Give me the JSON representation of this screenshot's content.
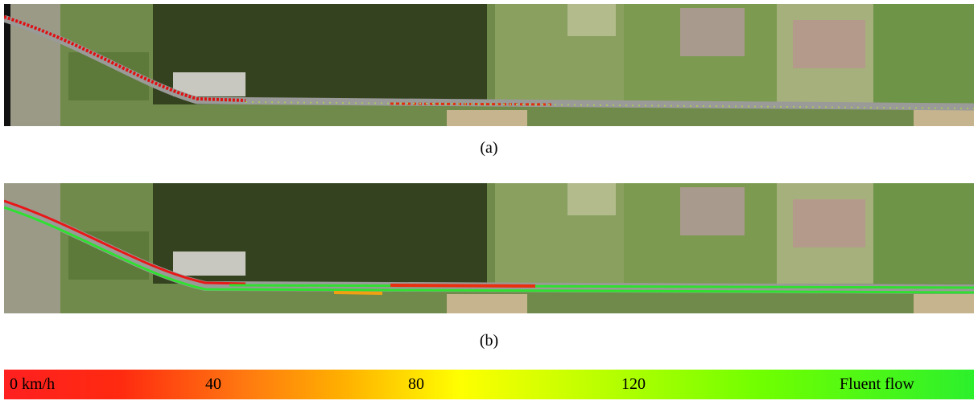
{
  "panels": [
    {
      "label": "(a)"
    },
    {
      "label": "(b)"
    }
  ],
  "legend": {
    "labels": [
      "0 km/h",
      "40",
      "80",
      "120",
      "Fluent flow"
    ]
  }
}
